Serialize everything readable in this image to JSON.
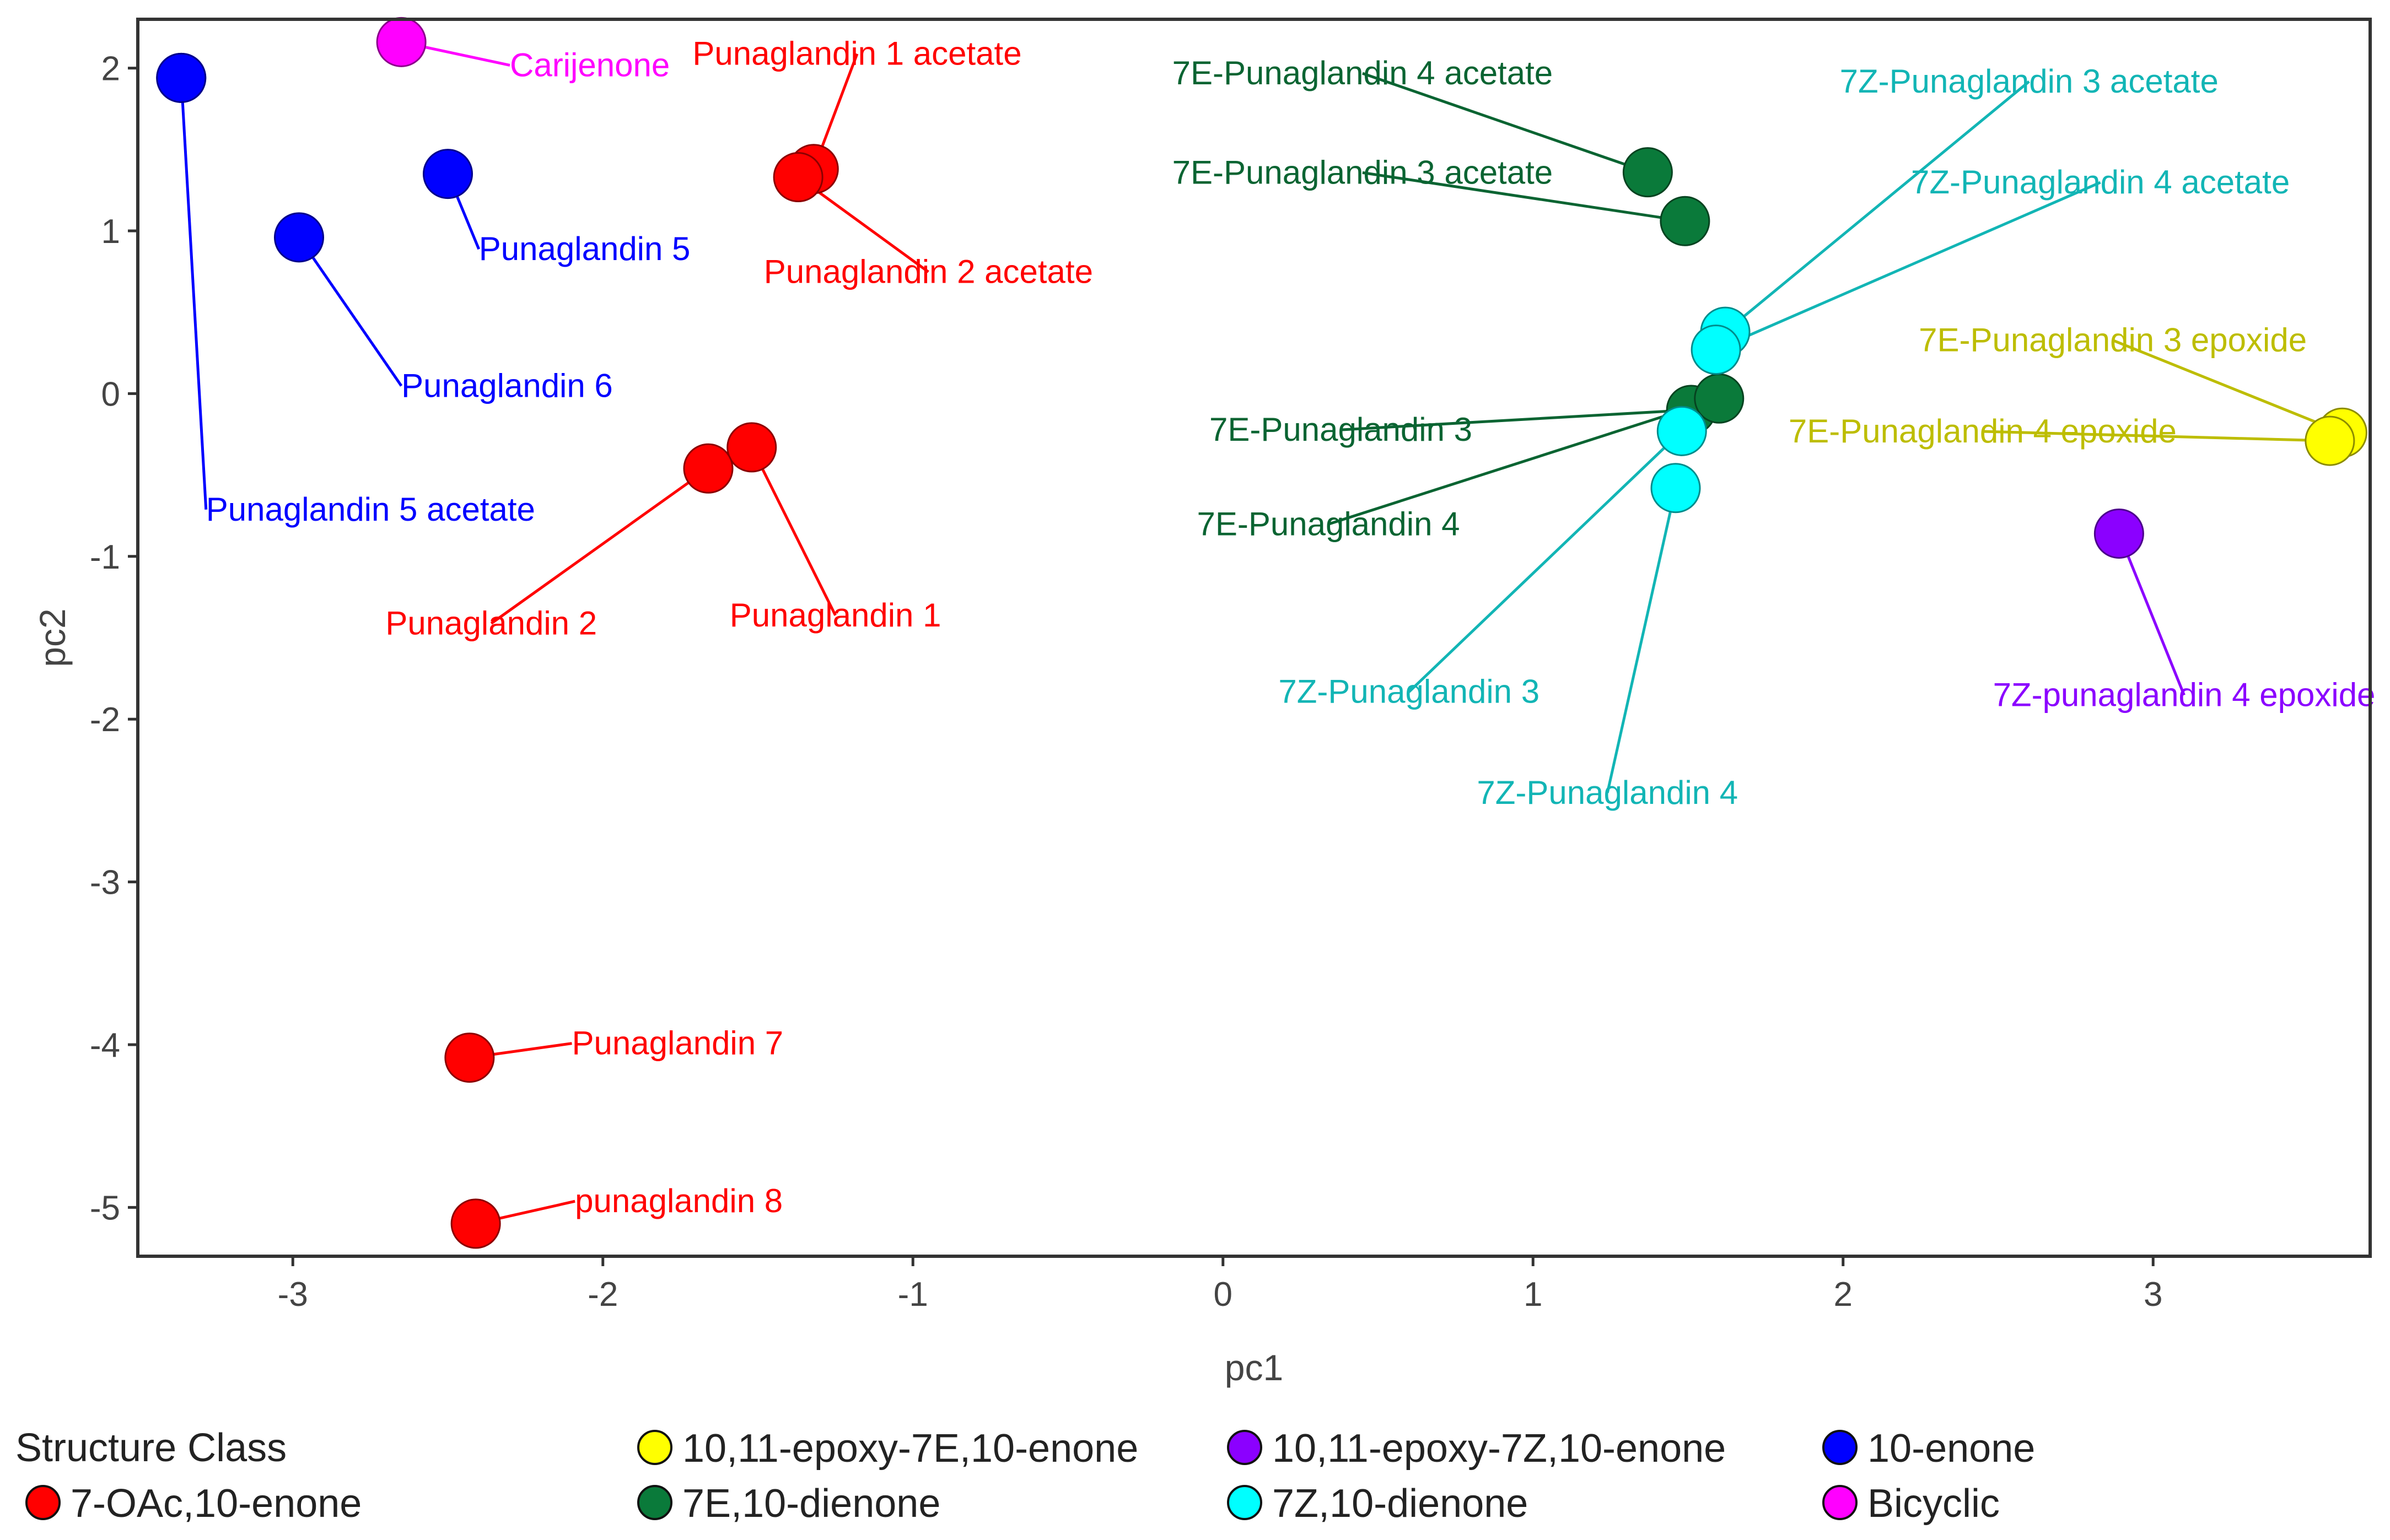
{
  "chart_data": {
    "type": "scatter",
    "title": "",
    "xlabel": "pc1",
    "ylabel": "pc2",
    "xlim": [
      -3.5,
      3.7
    ],
    "ylim": [
      -5.3,
      2.3
    ],
    "grid": false,
    "legend_position": "bottom",
    "x_ticks": [
      "-3",
      "-2",
      "-1",
      "0",
      "1",
      "2",
      "3"
    ],
    "y_ticks": [
      "2",
      "1",
      "0",
      "-1",
      "-2",
      "-3",
      "-4",
      "-5"
    ],
    "legend": {
      "title": "Structure Class",
      "entries": [
        {
          "label": "7-OAc,10-enone",
          "color": "#ff0000"
        },
        {
          "label": "10,11-epoxy-7E,10-enone",
          "color": "#ffff00"
        },
        {
          "label": "7E,10-dienone",
          "color": "#0a7a3a"
        },
        {
          "label": "10,11-epoxy-7Z,10-enone",
          "color": "#8b00ff"
        },
        {
          "label": "7Z,10-dienone",
          "color": "#00ffff"
        },
        {
          "label": "10-enone",
          "color": "#0000ff"
        },
        {
          "label": "Bicyclic",
          "color": "#ff00ff"
        }
      ]
    },
    "points": [
      {
        "label": "Carijenone",
        "x": -2.65,
        "y": 2.16,
        "class": "Bicyclic",
        "lx": -2.3,
        "ly": 1.95,
        "anchor": "start"
      },
      {
        "label": "",
        "x": -3.36,
        "y": 1.94,
        "class": "10-enone"
      },
      {
        "label": "Punaglandin 5",
        "x": -2.5,
        "y": 1.35,
        "class": "10-enone",
        "lx": -2.4,
        "ly": 0.82,
        "anchor": "start"
      },
      {
        "label": "Punaglandin 6",
        "x": -2.98,
        "y": 0.96,
        "class": "10-enone",
        "lx": -2.65,
        "ly": -0.02,
        "anchor": "start"
      },
      {
        "label": "Punaglandin 5 acetate",
        "x": -3.36,
        "y": 1.94,
        "class": "10-enone",
        "lx": -3.28,
        "ly": -0.78,
        "anchor": "start"
      },
      {
        "label": "Punaglandin 1 acetate",
        "x": -1.32,
        "y": 1.38,
        "class": "7-OAc,10-enone",
        "lx": -1.18,
        "ly": 2.02,
        "anchor": "middle"
      },
      {
        "label": "Punaglandin 2 acetate",
        "x": -1.37,
        "y": 1.33,
        "class": "7-OAc,10-enone",
        "lx": -0.95,
        "ly": 0.68,
        "anchor": "middle"
      },
      {
        "label": "Punaglandin 1",
        "x": -1.52,
        "y": -0.33,
        "class": "7-OAc,10-enone",
        "lx": -1.25,
        "ly": -1.43,
        "anchor": "middle"
      },
      {
        "label": "Punaglandin 2",
        "x": -1.66,
        "y": -0.46,
        "class": "7-OAc,10-enone",
        "lx": -2.36,
        "ly": -1.48,
        "anchor": "middle"
      },
      {
        "label": "Punaglandin 7",
        "x": -2.43,
        "y": -4.08,
        "class": "7-OAc,10-enone",
        "lx": -2.1,
        "ly": -4.06,
        "anchor": "start"
      },
      {
        "label": "punaglandin 8",
        "x": -2.41,
        "y": -5.1,
        "class": "7-OAc,10-enone",
        "lx": -2.09,
        "ly": -5.03,
        "anchor": "start"
      },
      {
        "label": "7E-Punaglandin 4 acetate",
        "x": 1.37,
        "y": 1.36,
        "class": "7E,10-dienone",
        "lx": 0.45,
        "ly": 1.9,
        "anchor": "middle"
      },
      {
        "label": "7E-Punaglandin 3 acetate",
        "x": 1.49,
        "y": 1.06,
        "class": "7E,10-dienone",
        "lx": 0.45,
        "ly": 1.29,
        "anchor": "middle"
      },
      {
        "label": "7E-Punaglandin 3",
        "x": 1.51,
        "y": -0.1,
        "class": "7E,10-dienone",
        "lx": 0.38,
        "ly": -0.29,
        "anchor": "middle"
      },
      {
        "label": "7E-Punaglandin 4",
        "x": 1.6,
        "y": -0.03,
        "class": "7E,10-dienone",
        "lx": 0.34,
        "ly": -0.87,
        "anchor": "middle"
      },
      {
        "label": "7Z-Punaglandin 3 acetate",
        "x": 1.62,
        "y": 0.38,
        "class": "7Z,10-dienone",
        "lx": 2.6,
        "ly": 1.85,
        "anchor": "middle"
      },
      {
        "label": "7Z-Punaglandin 4 acetate",
        "x": 1.59,
        "y": 0.27,
        "class": "7Z,10-dienone",
        "lx": 2.83,
        "ly": 1.23,
        "anchor": "middle"
      },
      {
        "label": "7Z-Punaglandin 3",
        "x": 1.48,
        "y": -0.23,
        "class": "7Z,10-dienone",
        "lx": 0.6,
        "ly": -1.9,
        "anchor": "middle"
      },
      {
        "label": "7Z-Punaglandin 4",
        "x": 1.46,
        "y": -0.58,
        "class": "7Z,10-dienone",
        "lx": 1.24,
        "ly": -2.52,
        "anchor": "middle"
      },
      {
        "label": "7E-Punaglandin 3 epoxide",
        "x": 3.61,
        "y": -0.24,
        "class": "10,11-epoxy-7E,10-enone",
        "lx": 2.87,
        "ly": 0.26,
        "anchor": "middle"
      },
      {
        "label": "7E-Punaglandin 4 epoxide",
        "x": 3.57,
        "y": -0.29,
        "class": "10,11-epoxy-7E,10-enone",
        "lx": 2.45,
        "ly": -0.3,
        "anchor": "middle"
      },
      {
        "label": "7Z-punaglandin 4 epoxide",
        "x": 2.89,
        "y": -0.86,
        "class": "10,11-epoxy-7Z,10-enone",
        "lx": 3.1,
        "ly": -1.92,
        "anchor": "middle"
      }
    ]
  }
}
